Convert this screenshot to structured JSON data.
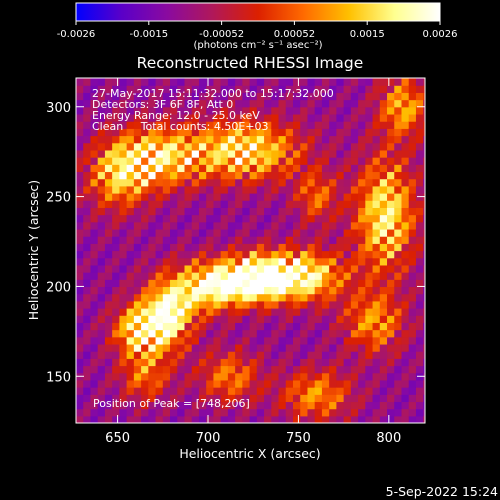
{
  "chart_data": {
    "type": "heatmap",
    "title": "Reconstructed RHESSI Image",
    "xlabel": "Heliocentric X (arcsec)",
    "ylabel": "Heliocentric Y (arcsec)",
    "xlim": [
      627,
      820
    ],
    "ylim": [
      124,
      316
    ],
    "xticks": [
      650,
      700,
      750,
      800
    ],
    "yticks": [
      150,
      200,
      250,
      300
    ],
    "colorbar": {
      "units": "(photons cm⁻² s⁻¹ asec⁻²)",
      "min": -0.0026,
      "max": 0.0026,
      "ticks": [
        "-0.0026",
        "-0.0015",
        "-0.00052",
        "0.00052",
        "0.0015",
        "0.0026"
      ],
      "colors": [
        "#0000ff",
        "#5a00c8",
        "#8a0aa0",
        "#b0185a",
        "#dc2000",
        "#ff6a00",
        "#ffc000",
        "#ffff90",
        "#ffffff"
      ]
    },
    "annotations": [
      "27-May-2017 15:11:32.000 to 15:17:32.000",
      "Detectors: 3F 6F 8F, Att 0",
      "Energy Range: 12.0 - 25.0 keV",
      "Clean     Total counts: 4.50E+03"
    ],
    "peak_text": "Position of Peak = [748,206]",
    "peak": [
      748,
      206
    ],
    "cell_size_arcsec": 4,
    "features": [
      {
        "cx": 748,
        "cy": 206,
        "sx": 18,
        "sy": 10,
        "amp": 1.0
      },
      {
        "cx": 722,
        "cy": 204,
        "sx": 12,
        "sy": 9,
        "amp": 0.85
      },
      {
        "cx": 700,
        "cy": 200,
        "sx": 12,
        "sy": 10,
        "amp": 0.75
      },
      {
        "cx": 678,
        "cy": 186,
        "sx": 10,
        "sy": 14,
        "amp": 0.85
      },
      {
        "cx": 662,
        "cy": 176,
        "sx": 10,
        "sy": 10,
        "amp": 0.8
      },
      {
        "cx": 720,
        "cy": 276,
        "sx": 22,
        "sy": 12,
        "amp": 0.8
      },
      {
        "cx": 672,
        "cy": 272,
        "sx": 16,
        "sy": 12,
        "amp": 0.7
      },
      {
        "cx": 650,
        "cy": 262,
        "sx": 12,
        "sy": 14,
        "amp": 0.6
      },
      {
        "cx": 798,
        "cy": 240,
        "sx": 12,
        "sy": 22,
        "amp": 0.8
      },
      {
        "cx": 808,
        "cy": 300,
        "sx": 10,
        "sy": 12,
        "amp": 0.6
      },
      {
        "cx": 792,
        "cy": 180,
        "sx": 12,
        "sy": 12,
        "amp": 0.55
      },
      {
        "cx": 760,
        "cy": 140,
        "sx": 14,
        "sy": 10,
        "amp": 0.55
      },
      {
        "cx": 712,
        "cy": 150,
        "sx": 12,
        "sy": 10,
        "amp": 0.5
      },
      {
        "cx": 665,
        "cy": 150,
        "sx": 10,
        "sy": 10,
        "amp": 0.45
      },
      {
        "cx": 760,
        "cy": 250,
        "sx": 8,
        "sy": 10,
        "amp": 0.45
      }
    ]
  },
  "footer": {
    "timestamp": "5-Sep-2022 15:24"
  }
}
